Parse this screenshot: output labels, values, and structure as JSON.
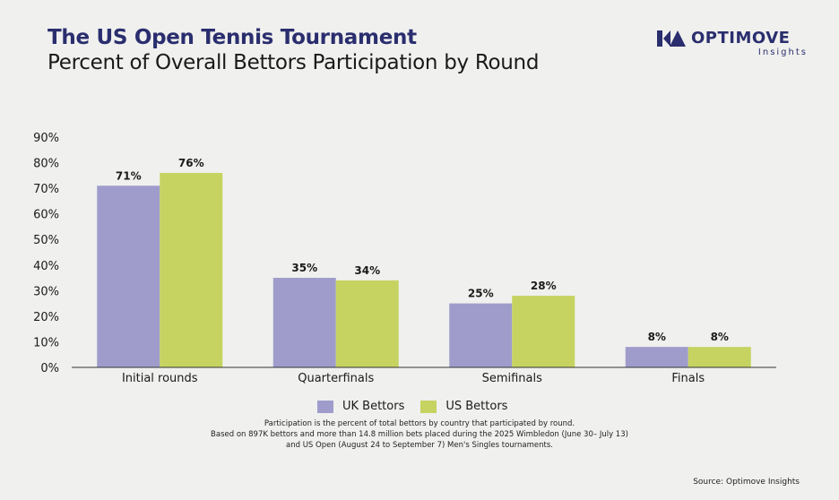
{
  "header": {
    "title": "The US Open Tennis Tournament",
    "subtitle": "Percent of Overall Bettors Participation by Round"
  },
  "logo": {
    "wordmark": "OPTIMOVE",
    "sub": "Insights"
  },
  "colors": {
    "uk": "#9f9ccc",
    "us": "#c6d361",
    "title": "#2a2e6e",
    "background": "#f0f0ee"
  },
  "chart_data": {
    "type": "bar",
    "categories": [
      "Initial rounds",
      "Quarterfinals",
      "Semifinals",
      "Finals"
    ],
    "series": [
      {
        "name": "UK Bettors",
        "values": [
          71,
          35,
          25,
          8
        ],
        "labels": [
          "71%",
          "35%",
          "25%",
          "8%"
        ]
      },
      {
        "name": "US Bettors",
        "values": [
          76,
          34,
          28,
          8
        ],
        "labels": [
          "76%",
          "34%",
          "28%",
          "8%"
        ]
      }
    ],
    "yticks": [
      "0%",
      "10%",
      "20%",
      "30%",
      "40%",
      "50%",
      "60%",
      "70%",
      "80%",
      "90%"
    ],
    "ylim": [
      0,
      90
    ],
    "grid": false,
    "legend": "bottom"
  },
  "legend": {
    "uk_label": "UK Bettors",
    "us_label": "US Bettors"
  },
  "footnote": {
    "line1": "Participation is the percent of total bettors by country that participated by round.",
    "line2": "Based on 897K bettors and more than 14.8 million bets placed during the 2025 Wimbledon (June 30– July 13)",
    "line3": "and US Open (August 24 to September 7) Men's Singles tournaments."
  },
  "source": "Source: Optimove Insights"
}
